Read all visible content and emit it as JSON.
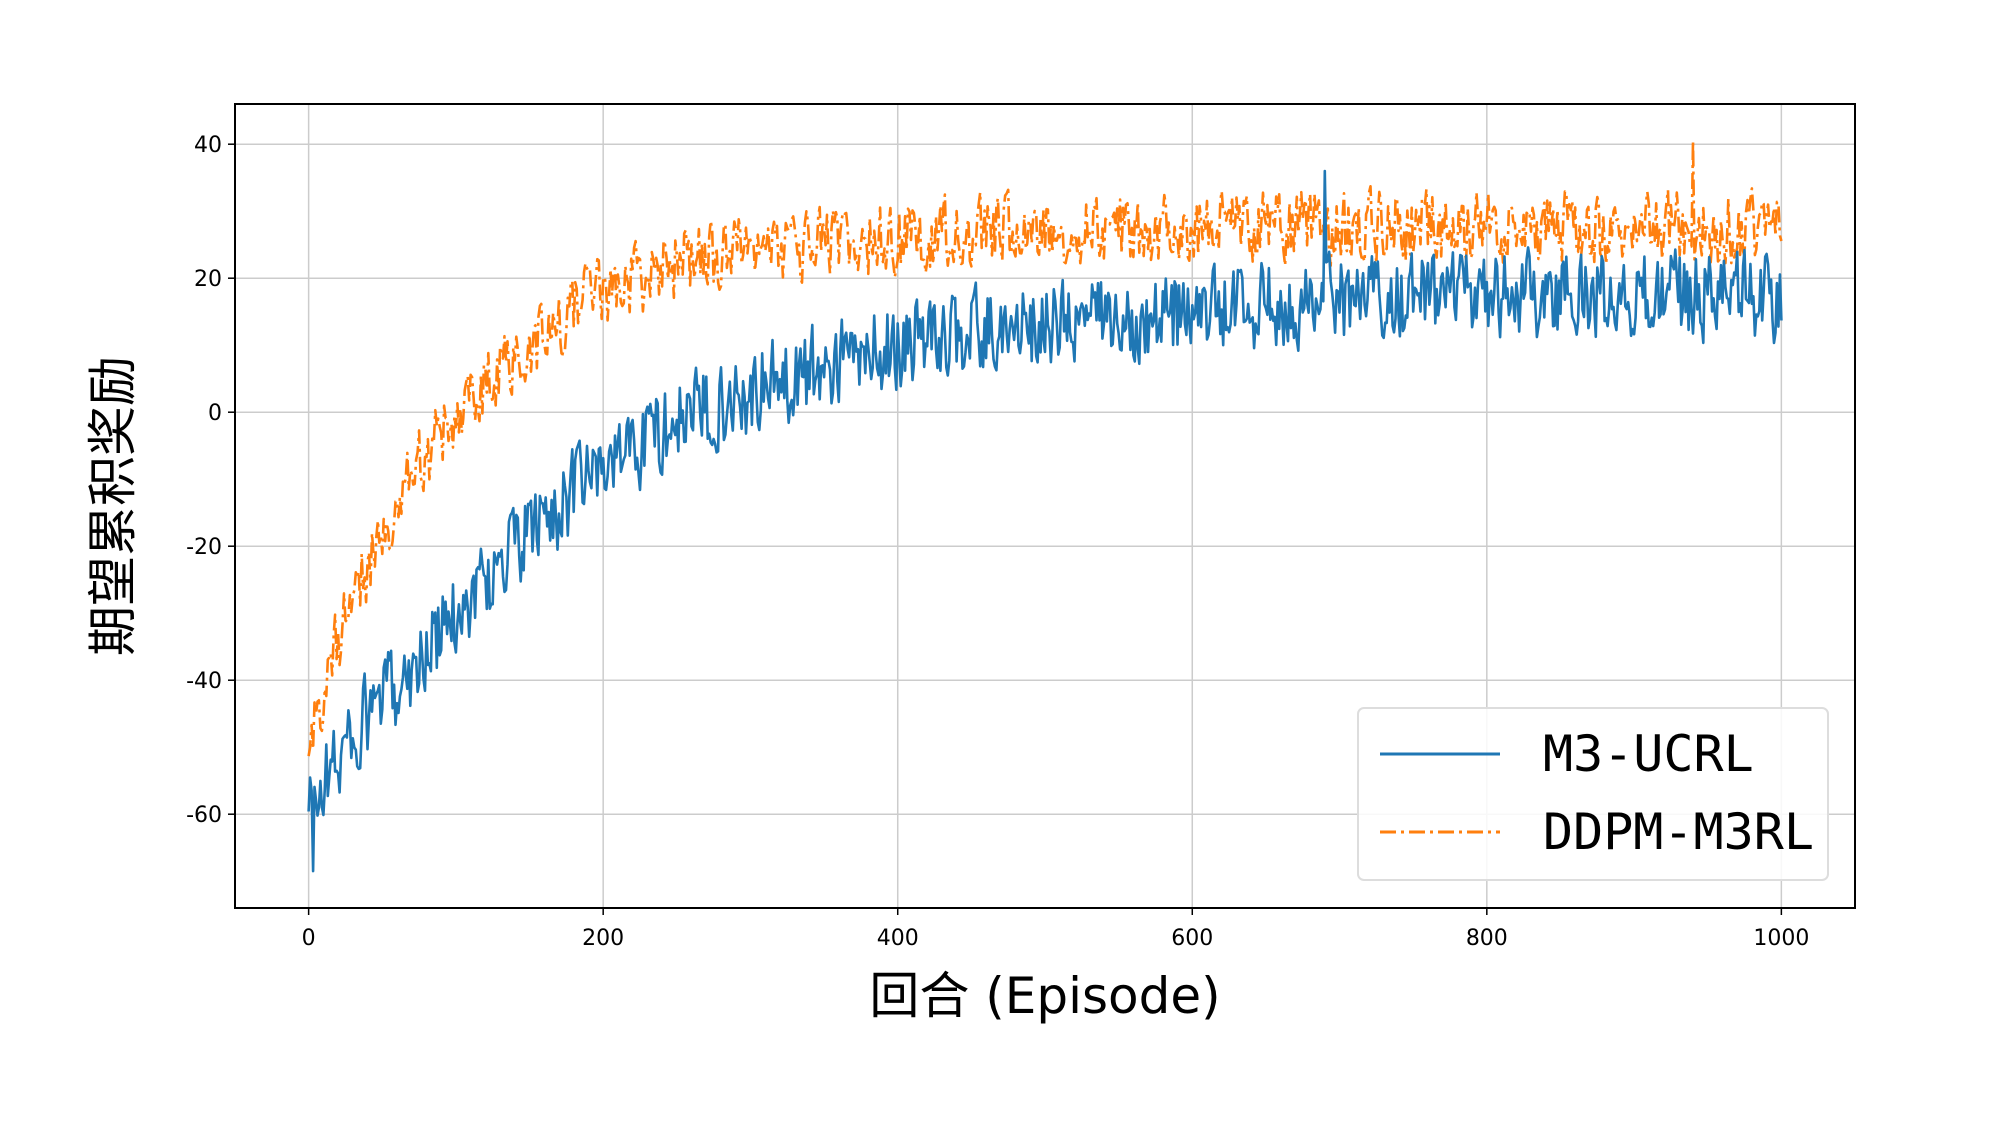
{
  "chart_data": {
    "type": "line",
    "xlabel": "回合 (Episode)",
    "ylabel": "期望累积奖励",
    "xlim": [
      -50,
      1050
    ],
    "ylim": [
      -74,
      46
    ],
    "xticks": [
      0,
      200,
      400,
      600,
      800,
      1000
    ],
    "yticks": [
      -60,
      -40,
      -20,
      0,
      20,
      40
    ],
    "grid": true,
    "legend_position": "lower-right",
    "series": [
      {
        "name": "M3-UCRL",
        "color": "#1f77b4",
        "line_style": "solid",
        "trend_keypoints": {
          "x": [
            0,
            10,
            25,
            50,
            75,
            100,
            150,
            200,
            250,
            300,
            350,
            400,
            450,
            500,
            600,
            700,
            800,
            900,
            1000
          ],
          "y": [
            -60,
            -55,
            -50,
            -43,
            -37,
            -30,
            -18,
            -8,
            -1,
            3,
            7,
            10,
            12,
            13,
            15,
            17,
            17.5,
            17.5,
            17
          ]
        },
        "noise_amplitude": 6,
        "extremes": [
          {
            "x": 3,
            "y": -68.5
          },
          {
            "x": 690,
            "y": 36
          }
        ]
      },
      {
        "name": "DDPM-M3RL",
        "color": "#ff7f0e",
        "line_style": "dashdot",
        "trend_keypoints": {
          "x": [
            0,
            10,
            25,
            50,
            75,
            100,
            150,
            200,
            250,
            300,
            350,
            400,
            450,
            500,
            600,
            700,
            800,
            900,
            1000
          ],
          "y": [
            -50,
            -42,
            -30,
            -18,
            -8,
            0,
            10,
            18,
            22,
            24,
            25,
            26,
            27,
            27.5,
            27.5,
            27.5,
            27.5,
            27.5,
            27.5
          ]
        },
        "noise_amplitude": 5,
        "extremes": [
          {
            "x": 940,
            "y": 40.5
          }
        ]
      }
    ]
  }
}
